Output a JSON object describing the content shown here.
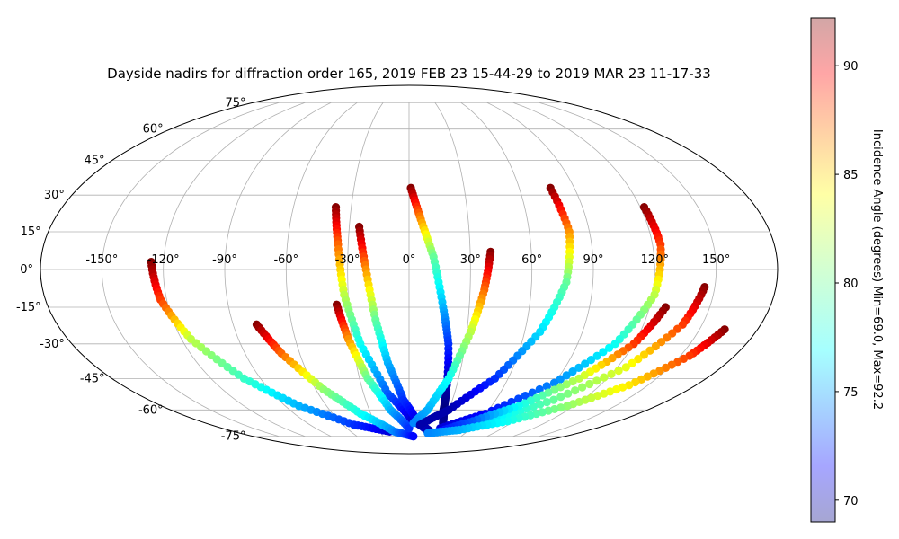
{
  "chart_data": {
    "type": "scatter",
    "title": "Dayside nadirs for diffraction order 165, 2019 FEB 23 15-44-29 to 2019 MAR 23 11-17-33",
    "projection": "mollweide",
    "grid": true,
    "colormap": "jet",
    "lon_ticks": [
      -150,
      -120,
      -90,
      -60,
      -30,
      0,
      30,
      60,
      90,
      120,
      150
    ],
    "lon_tick_labels": [
      "-150°",
      "-120°",
      "-90°",
      "-60°",
      "-30°",
      "0°",
      "30°",
      "60°",
      "90°",
      "120°",
      "150°"
    ],
    "lat_ticks": [
      75,
      60,
      45,
      30,
      15,
      0,
      -15,
      -30,
      -45,
      -60,
      -75
    ],
    "lat_tick_labels": [
      "75°",
      "60°",
      "45°",
      "30°",
      "15°",
      "0°",
      "-15°",
      "-30°",
      "-45°",
      "-60°",
      "-75°"
    ],
    "colorbar": {
      "label": "Incidence Angle (degrees) Min=69.0, Max=92.2",
      "min": 69.0,
      "max": 92.2,
      "ticks": [
        70,
        75,
        80,
        85,
        90
      ],
      "tick_labels": [
        "70",
        "75",
        "80",
        "85",
        "90"
      ]
    },
    "series": [
      {
        "points": [
          [
            -126,
            3,
            92.2
          ],
          [
            -123,
            -12,
            88
          ],
          [
            -115,
            -28,
            82
          ],
          [
            -100,
            -45,
            79
          ],
          [
            -80,
            -58,
            76
          ],
          [
            -50,
            -68,
            73
          ],
          [
            -20,
            -72,
            71
          ]
        ]
      },
      {
        "points": [
          [
            -78,
            -22,
            92
          ],
          [
            -70,
            -34,
            87
          ],
          [
            -55,
            -50,
            81
          ],
          [
            -38,
            -62,
            78
          ],
          [
            -15,
            -72,
            75
          ],
          [
            5,
            -75,
            72
          ]
        ]
      },
      {
        "points": [
          [
            -38,
            25,
            92
          ],
          [
            -35,
            10,
            87
          ],
          [
            -32,
            -10,
            82
          ],
          [
            -26,
            -30,
            78
          ],
          [
            -14,
            -52,
            74
          ],
          [
            2,
            -65,
            71
          ],
          [
            20,
            -72,
            70
          ]
        ]
      },
      {
        "points": [
          [
            -36,
            -14,
            92
          ],
          [
            -32,
            -28,
            86
          ],
          [
            -25,
            -45,
            80
          ],
          [
            -14,
            -60,
            76
          ],
          [
            0,
            -70,
            73
          ]
        ]
      },
      {
        "points": [
          [
            -25,
            17,
            92
          ],
          [
            -21,
            0,
            86
          ],
          [
            -17,
            -20,
            80
          ],
          [
            -12,
            -38,
            76
          ],
          [
            -4,
            -55,
            73
          ],
          [
            8,
            -67,
            71
          ],
          [
            22,
            -72,
            70
          ]
        ]
      },
      {
        "points": [
          [
            1,
            33,
            92
          ],
          [
            6,
            20,
            86
          ],
          [
            12,
            5,
            80
          ],
          [
            17,
            -15,
            76
          ],
          [
            21,
            -30,
            73
          ],
          [
            24,
            -50,
            70
          ],
          [
            26,
            -60,
            69
          ],
          [
            30,
            -67,
            69.5
          ]
        ]
      },
      {
        "points": [
          [
            40,
            7,
            92
          ],
          [
            37,
            -8,
            87
          ],
          [
            32,
            -25,
            82
          ],
          [
            24,
            -45,
            78
          ],
          [
            14,
            -60,
            76
          ],
          [
            4,
            -67,
            75
          ]
        ]
      },
      {
        "points": [
          [
            77,
            33,
            92
          ],
          [
            80,
            15,
            86
          ],
          [
            77,
            -5,
            80
          ],
          [
            68,
            -25,
            77
          ],
          [
            52,
            -45,
            73
          ],
          [
            30,
            -60,
            70
          ],
          [
            10,
            -68,
            70
          ]
        ]
      },
      {
        "points": [
          [
            122,
            25,
            92
          ],
          [
            124,
            10,
            88
          ],
          [
            121,
            -10,
            82
          ],
          [
            110,
            -30,
            78
          ],
          [
            90,
            -47,
            75
          ],
          [
            60,
            -62,
            72
          ],
          [
            30,
            -70,
            71
          ]
        ]
      },
      {
        "points": [
          [
            145,
            -7,
            92
          ],
          [
            140,
            -22,
            88
          ],
          [
            125,
            -40,
            83
          ],
          [
            100,
            -55,
            80
          ],
          [
            70,
            -66,
            77
          ],
          [
            40,
            -71,
            75
          ]
        ]
      },
      {
        "points": [
          [
            128,
            -15,
            92
          ],
          [
            120,
            -30,
            88
          ],
          [
            103,
            -45,
            82
          ],
          [
            80,
            -58,
            78
          ],
          [
            55,
            -66,
            74
          ],
          [
            30,
            -72,
            72
          ]
        ]
      },
      {
        "points": [
          [
            163,
            -24,
            92
          ],
          [
            155,
            -35,
            88
          ],
          [
            138,
            -48,
            84
          ],
          [
            115,
            -58,
            81
          ],
          [
            85,
            -66,
            78
          ],
          [
            50,
            -71,
            76
          ],
          [
            20,
            -73,
            75
          ]
        ]
      }
    ]
  }
}
